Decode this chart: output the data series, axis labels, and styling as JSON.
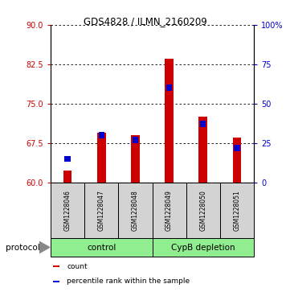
{
  "title": "GDS4828 / ILMN_2160209",
  "samples": [
    "GSM1228046",
    "GSM1228047",
    "GSM1228048",
    "GSM1228049",
    "GSM1228050",
    "GSM1228051"
  ],
  "counts": [
    62.3,
    69.5,
    69.0,
    83.5,
    72.5,
    68.5
  ],
  "percentile_ranks": [
    15,
    30,
    27,
    60,
    37,
    22
  ],
  "ylim_left": [
    60,
    90
  ],
  "yticks_left": [
    60,
    67.5,
    75,
    82.5,
    90
  ],
  "ylim_right": [
    0,
    100
  ],
  "yticks_right": [
    0,
    25,
    50,
    75,
    100
  ],
  "yticklabels_right": [
    "0",
    "25",
    "50",
    "75",
    "100%"
  ],
  "bar_color_red": "#cc0000",
  "bar_color_blue": "#0000cc",
  "left_tick_color": "#cc0000",
  "right_tick_color": "#0000cc",
  "groups": [
    {
      "label": "control",
      "samples": [
        0,
        1,
        2
      ],
      "color": "#90ee90"
    },
    {
      "label": "CypB depletion",
      "samples": [
        3,
        4,
        5
      ],
      "color": "#90ee90"
    }
  ],
  "protocol_label": "protocol",
  "legend_items": [
    {
      "label": "count",
      "color": "#cc0000"
    },
    {
      "label": "percentile rank within the sample",
      "color": "#0000cc"
    }
  ],
  "grid_color": "black",
  "bar_width": 0.25,
  "label_area_color": "#d3d3d3",
  "group_area_color": "#90ee90",
  "blue_square_size": 0.18
}
